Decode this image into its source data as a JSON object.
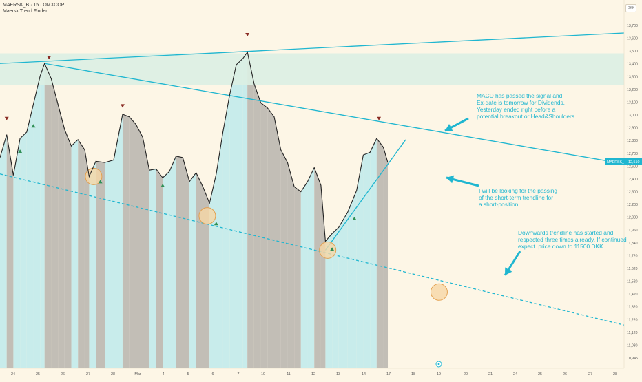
{
  "header": {
    "symbol_line": "MAERSK_B · 15 · OMXCOP",
    "indicator_name": "Maersk Trend Finder",
    "currency": "DKK"
  },
  "price_tag": {
    "symbol": "MAERSK_B",
    "value": "12,510"
  },
  "annotations": [
    "MACD has passed the signal and\nEx-date is tomorrow for Dividends.\nYesterday ended right before a\npotential breakout or Head&Shoulders",
    "I will be looking for the passing\nof the short-term trendline for\na short-position",
    "Downwards trendline has started and\nrespected three times already. If continued\nexpect  price down to 11500 DKK"
  ],
  "colors": {
    "background": "#fdf6e6",
    "bull_zone": "#c8eceb",
    "bear_zone": "#c2beb6",
    "trendline": "#1fb6d0",
    "resistance_band": "#dcefe3",
    "price_line": "#222222",
    "circle_fill": "#f6d7a6",
    "circle_stroke": "#e3a04f",
    "arrow_up": "#2f8f55",
    "arrow_down": "#8a2c24"
  },
  "chart_data": {
    "type": "line",
    "y_axis_labels": [
      "13,700",
      "13,600",
      "13,500",
      "13,400",
      "13,300",
      "13,200",
      "13,100",
      "13,000",
      "12,900",
      "12,800",
      "12,700",
      "12,600",
      "12,400",
      "12,300",
      "12,200",
      "12,080",
      "11,960",
      "11,840",
      "11,720",
      "11,620",
      "11,520",
      "11,420",
      "11,320",
      "11,220",
      "11,120",
      "11,030",
      "10,945"
    ],
    "x_axis_labels": [
      "24",
      "25",
      "26",
      "27",
      "28",
      "Mar",
      "4",
      "5",
      "6",
      "7",
      "10",
      "11",
      "12",
      "13",
      "14",
      "17",
      "18",
      "19",
      "20",
      "21",
      "24",
      "25",
      "26",
      "27",
      "28"
    ],
    "price_series": [
      [
        24,
        12560
      ],
      [
        24.3,
        12740
      ],
      [
        24.6,
        12420
      ],
      [
        24.9,
        12710
      ],
      [
        25.2,
        12760
      ],
      [
        25.5,
        12980
      ],
      [
        25.8,
        13200
      ],
      [
        26,
        13300
      ],
      [
        26.3,
        13180
      ],
      [
        26.6,
        12980
      ],
      [
        26.9,
        12780
      ],
      [
        27.2,
        12650
      ],
      [
        27.5,
        12700
      ],
      [
        27.8,
        12620
      ],
      [
        28,
        12410
      ],
      [
        28.3,
        12530
      ],
      [
        28.7,
        12520
      ],
      [
        29.1,
        12540
      ],
      [
        29.5,
        12900
      ],
      [
        29.8,
        12880
      ],
      [
        30.1,
        12820
      ],
      [
        30.4,
        12720
      ],
      [
        30.7,
        12460
      ],
      [
        31,
        12470
      ],
      [
        31.3,
        12400
      ],
      [
        31.6,
        12450
      ],
      [
        31.9,
        12570
      ],
      [
        32.2,
        12560
      ],
      [
        32.5,
        12370
      ],
      [
        32.8,
        12440
      ],
      [
        33.1,
        12330
      ],
      [
        33.4,
        12200
      ],
      [
        33.7,
        12430
      ],
      [
        34,
        12760
      ],
      [
        34.3,
        13050
      ],
      [
        34.6,
        13290
      ],
      [
        34.9,
        13340
      ],
      [
        35.1,
        13390
      ],
      [
        35.4,
        13140
      ],
      [
        35.7,
        12990
      ],
      [
        36,
        12950
      ],
      [
        36.3,
        12880
      ],
      [
        36.6,
        12620
      ],
      [
        36.9,
        12520
      ],
      [
        37.2,
        12330
      ],
      [
        37.5,
        12290
      ],
      [
        37.8,
        12370
      ],
      [
        38.1,
        12480
      ],
      [
        38.4,
        12340
      ],
      [
        38.6,
        11900
      ],
      [
        38.9,
        11960
      ],
      [
        39.2,
        12010
      ],
      [
        39.6,
        12130
      ],
      [
        40,
        12300
      ],
      [
        40.3,
        12580
      ],
      [
        40.6,
        12600
      ],
      [
        40.9,
        12710
      ],
      [
        41.2,
        12640
      ],
      [
        41.4,
        12520
      ]
    ],
    "trendlines": [
      {
        "name": "long-term-resistance",
        "from": [
          24,
          13300
        ],
        "to": [
          52,
          13540
        ],
        "style": "solid"
      },
      {
        "name": "descending-resistance",
        "from": [
          26,
          13300
        ],
        "to": [
          52,
          12510
        ],
        "style": "solid"
      },
      {
        "name": "short-term-support",
        "from": [
          38.6,
          11830
        ],
        "to": [
          42.2,
          12700
        ],
        "style": "solid"
      },
      {
        "name": "downwards-trendline",
        "from": [
          24,
          12430
        ],
        "to": [
          52,
          11240
        ],
        "style": "dashed"
      }
    ],
    "touch_points": [
      [
        28.2,
        12410
      ],
      [
        33.3,
        12100
      ],
      [
        38.7,
        11830
      ],
      [
        43.7,
        11500
      ]
    ],
    "resistance_band": [
      13130,
      13380
    ],
    "current_price": 12510,
    "ylim": [
      10900,
      13800
    ],
    "xlim": [
      24,
      52
    ]
  }
}
